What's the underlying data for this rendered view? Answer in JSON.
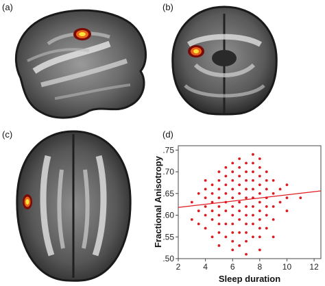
{
  "panels": {
    "a": "(a)",
    "b": "(b)",
    "c": "(c)",
    "d": "(d)"
  },
  "colors": {
    "scatter": "#e0191e",
    "blob_outer": "#7a0a05",
    "blob_mid": "#e8641a",
    "blob_core": "#ffe23a"
  },
  "chart_data": {
    "type": "scatter",
    "xlabel": "Sleep duration",
    "ylabel": "Fractional Anisotropy",
    "xlim": [
      2,
      12.5
    ],
    "ylim": [
      0.5,
      0.76
    ],
    "xticks": [
      "2",
      "4",
      "6",
      "8",
      "10",
      "12"
    ],
    "xtick_values": [
      2,
      4,
      6,
      8,
      10,
      12
    ],
    "yticks": [
      ".50",
      ".55",
      ".60",
      ".65",
      ".70",
      ".75"
    ],
    "ytick_values": [
      0.5,
      0.55,
      0.6,
      0.65,
      0.7,
      0.75
    ],
    "grid": false,
    "fit_line": {
      "x0": 2,
      "y0": 0.618,
      "x1": 12.5,
      "y1": 0.656
    },
    "series": [
      {
        "points": [
          [
            3,
            0.59
          ],
          [
            3,
            0.63
          ],
          [
            3.5,
            0.61
          ],
          [
            3.5,
            0.65
          ],
          [
            3.5,
            0.58
          ],
          [
            4,
            0.6
          ],
          [
            4,
            0.62
          ],
          [
            4,
            0.64
          ],
          [
            4,
            0.66
          ],
          [
            4,
            0.57
          ],
          [
            4,
            0.68
          ],
          [
            4.5,
            0.59
          ],
          [
            4.5,
            0.61
          ],
          [
            4.5,
            0.63
          ],
          [
            4.5,
            0.65
          ],
          [
            4.5,
            0.67
          ],
          [
            4.5,
            0.55
          ],
          [
            5,
            0.53
          ],
          [
            5,
            0.56
          ],
          [
            5,
            0.58
          ],
          [
            5,
            0.6
          ],
          [
            5,
            0.62
          ],
          [
            5,
            0.64
          ],
          [
            5,
            0.66
          ],
          [
            5,
            0.68
          ],
          [
            5,
            0.7
          ],
          [
            5.5,
            0.55
          ],
          [
            5.5,
            0.58
          ],
          [
            5.5,
            0.61
          ],
          [
            5.5,
            0.63
          ],
          [
            5.5,
            0.65
          ],
          [
            5.5,
            0.67
          ],
          [
            5.5,
            0.69
          ],
          [
            5.5,
            0.71
          ],
          [
            6,
            0.52
          ],
          [
            6,
            0.54
          ],
          [
            6,
            0.56
          ],
          [
            6,
            0.58
          ],
          [
            6,
            0.6
          ],
          [
            6,
            0.62
          ],
          [
            6,
            0.64
          ],
          [
            6,
            0.66
          ],
          [
            6,
            0.68
          ],
          [
            6,
            0.7
          ],
          [
            6,
            0.72
          ],
          [
            6.5,
            0.53
          ],
          [
            6.5,
            0.56
          ],
          [
            6.5,
            0.59
          ],
          [
            6.5,
            0.61
          ],
          [
            6.5,
            0.63
          ],
          [
            6.5,
            0.65
          ],
          [
            6.5,
            0.67
          ],
          [
            6.5,
            0.69
          ],
          [
            6.5,
            0.71
          ],
          [
            6.5,
            0.73
          ],
          [
            7,
            0.51
          ],
          [
            7,
            0.54
          ],
          [
            7,
            0.56
          ],
          [
            7,
            0.58
          ],
          [
            7,
            0.6
          ],
          [
            7,
            0.62
          ],
          [
            7,
            0.64
          ],
          [
            7,
            0.66
          ],
          [
            7,
            0.68
          ],
          [
            7,
            0.7
          ],
          [
            7,
            0.72
          ],
          [
            7.5,
            0.55
          ],
          [
            7.5,
            0.58
          ],
          [
            7.5,
            0.6
          ],
          [
            7.5,
            0.62
          ],
          [
            7.5,
            0.64
          ],
          [
            7.5,
            0.66
          ],
          [
            7.5,
            0.68
          ],
          [
            7.5,
            0.7
          ],
          [
            7.5,
            0.72
          ],
          [
            7.5,
            0.74
          ],
          [
            8,
            0.52
          ],
          [
            8,
            0.55
          ],
          [
            8,
            0.57
          ],
          [
            8,
            0.59
          ],
          [
            8,
            0.61
          ],
          [
            8,
            0.63
          ],
          [
            8,
            0.65
          ],
          [
            8,
            0.67
          ],
          [
            8,
            0.69
          ],
          [
            8,
            0.71
          ],
          [
            8,
            0.73
          ],
          [
            8.5,
            0.57
          ],
          [
            8.5,
            0.6
          ],
          [
            8.5,
            0.62
          ],
          [
            8.5,
            0.64
          ],
          [
            8.5,
            0.66
          ],
          [
            8.5,
            0.68
          ],
          [
            8.5,
            0.7
          ],
          [
            9,
            0.55
          ],
          [
            9,
            0.59
          ],
          [
            9,
            0.62
          ],
          [
            9,
            0.65
          ],
          [
            9,
            0.68
          ],
          [
            9.5,
            0.63
          ],
          [
            9.5,
            0.66
          ],
          [
            10,
            0.61
          ],
          [
            10,
            0.64
          ],
          [
            10,
            0.67
          ],
          [
            11,
            0.64
          ]
        ]
      }
    ]
  }
}
